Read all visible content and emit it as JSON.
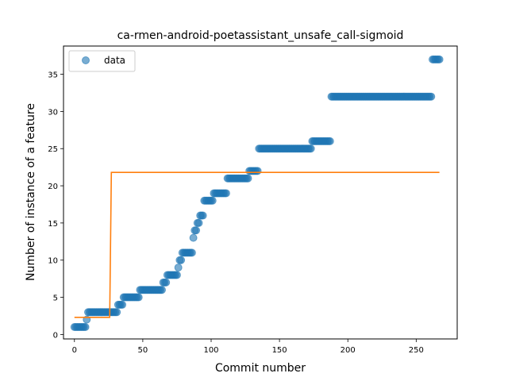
{
  "chart_data": {
    "type": "scatter",
    "title": "ca-rmen-android-poetassistant_unsafe_call-sigmoid",
    "xlabel": "Commit number",
    "ylabel": "Number of instance of a feature",
    "xlim": [
      -8,
      280
    ],
    "ylim": [
      -0.6,
      38.8
    ],
    "xticks": [
      0,
      50,
      100,
      150,
      200,
      250
    ],
    "yticks": [
      0,
      5,
      10,
      15,
      20,
      25,
      30,
      35
    ],
    "legend": {
      "position": "upper-left",
      "entries": [
        "data"
      ]
    },
    "colors": {
      "data": "#1f77b4",
      "fit": "#ff7f0e"
    },
    "series": [
      {
        "name": "data",
        "kind": "scatter",
        "segments": [
          {
            "x_start": 0,
            "x_end": 8,
            "y": 1
          },
          {
            "x_start": 9,
            "x_end": 9,
            "y": 2
          },
          {
            "x_start": 10,
            "x_end": 31,
            "y": 3
          },
          {
            "x_start": 32,
            "x_end": 35,
            "y": 4
          },
          {
            "x_start": 36,
            "x_end": 47,
            "y": 5
          },
          {
            "x_start": 48,
            "x_end": 64,
            "y": 6
          },
          {
            "x_start": 65,
            "x_end": 67,
            "y": 7
          },
          {
            "x_start": 68,
            "x_end": 75,
            "y": 8
          },
          {
            "x_start": 76,
            "x_end": 76,
            "y": 9
          },
          {
            "x_start": 77,
            "x_end": 78,
            "y": 10
          },
          {
            "x_start": 79,
            "x_end": 86,
            "y": 11
          },
          {
            "x_start": 87,
            "x_end": 87,
            "y": 13
          },
          {
            "x_start": 88,
            "x_end": 89,
            "y": 14
          },
          {
            "x_start": 90,
            "x_end": 91,
            "y": 15
          },
          {
            "x_start": 92,
            "x_end": 94,
            "y": 16
          },
          {
            "x_start": 95,
            "x_end": 101,
            "y": 18
          },
          {
            "x_start": 102,
            "x_end": 111,
            "y": 19
          },
          {
            "x_start": 112,
            "x_end": 127,
            "y": 21
          },
          {
            "x_start": 128,
            "x_end": 134,
            "y": 22
          },
          {
            "x_start": 135,
            "x_end": 173,
            "y": 25
          },
          {
            "x_start": 174,
            "x_end": 187,
            "y": 26
          },
          {
            "x_start": 188,
            "x_end": 261,
            "y": 32
          },
          {
            "x_start": 262,
            "x_end": 267,
            "y": 37
          }
        ]
      },
      {
        "name": "fit",
        "kind": "line",
        "x": [
          0,
          25.8,
          27,
          267
        ],
        "y": [
          2.3,
          2.3,
          21.8,
          21.8
        ]
      }
    ]
  }
}
